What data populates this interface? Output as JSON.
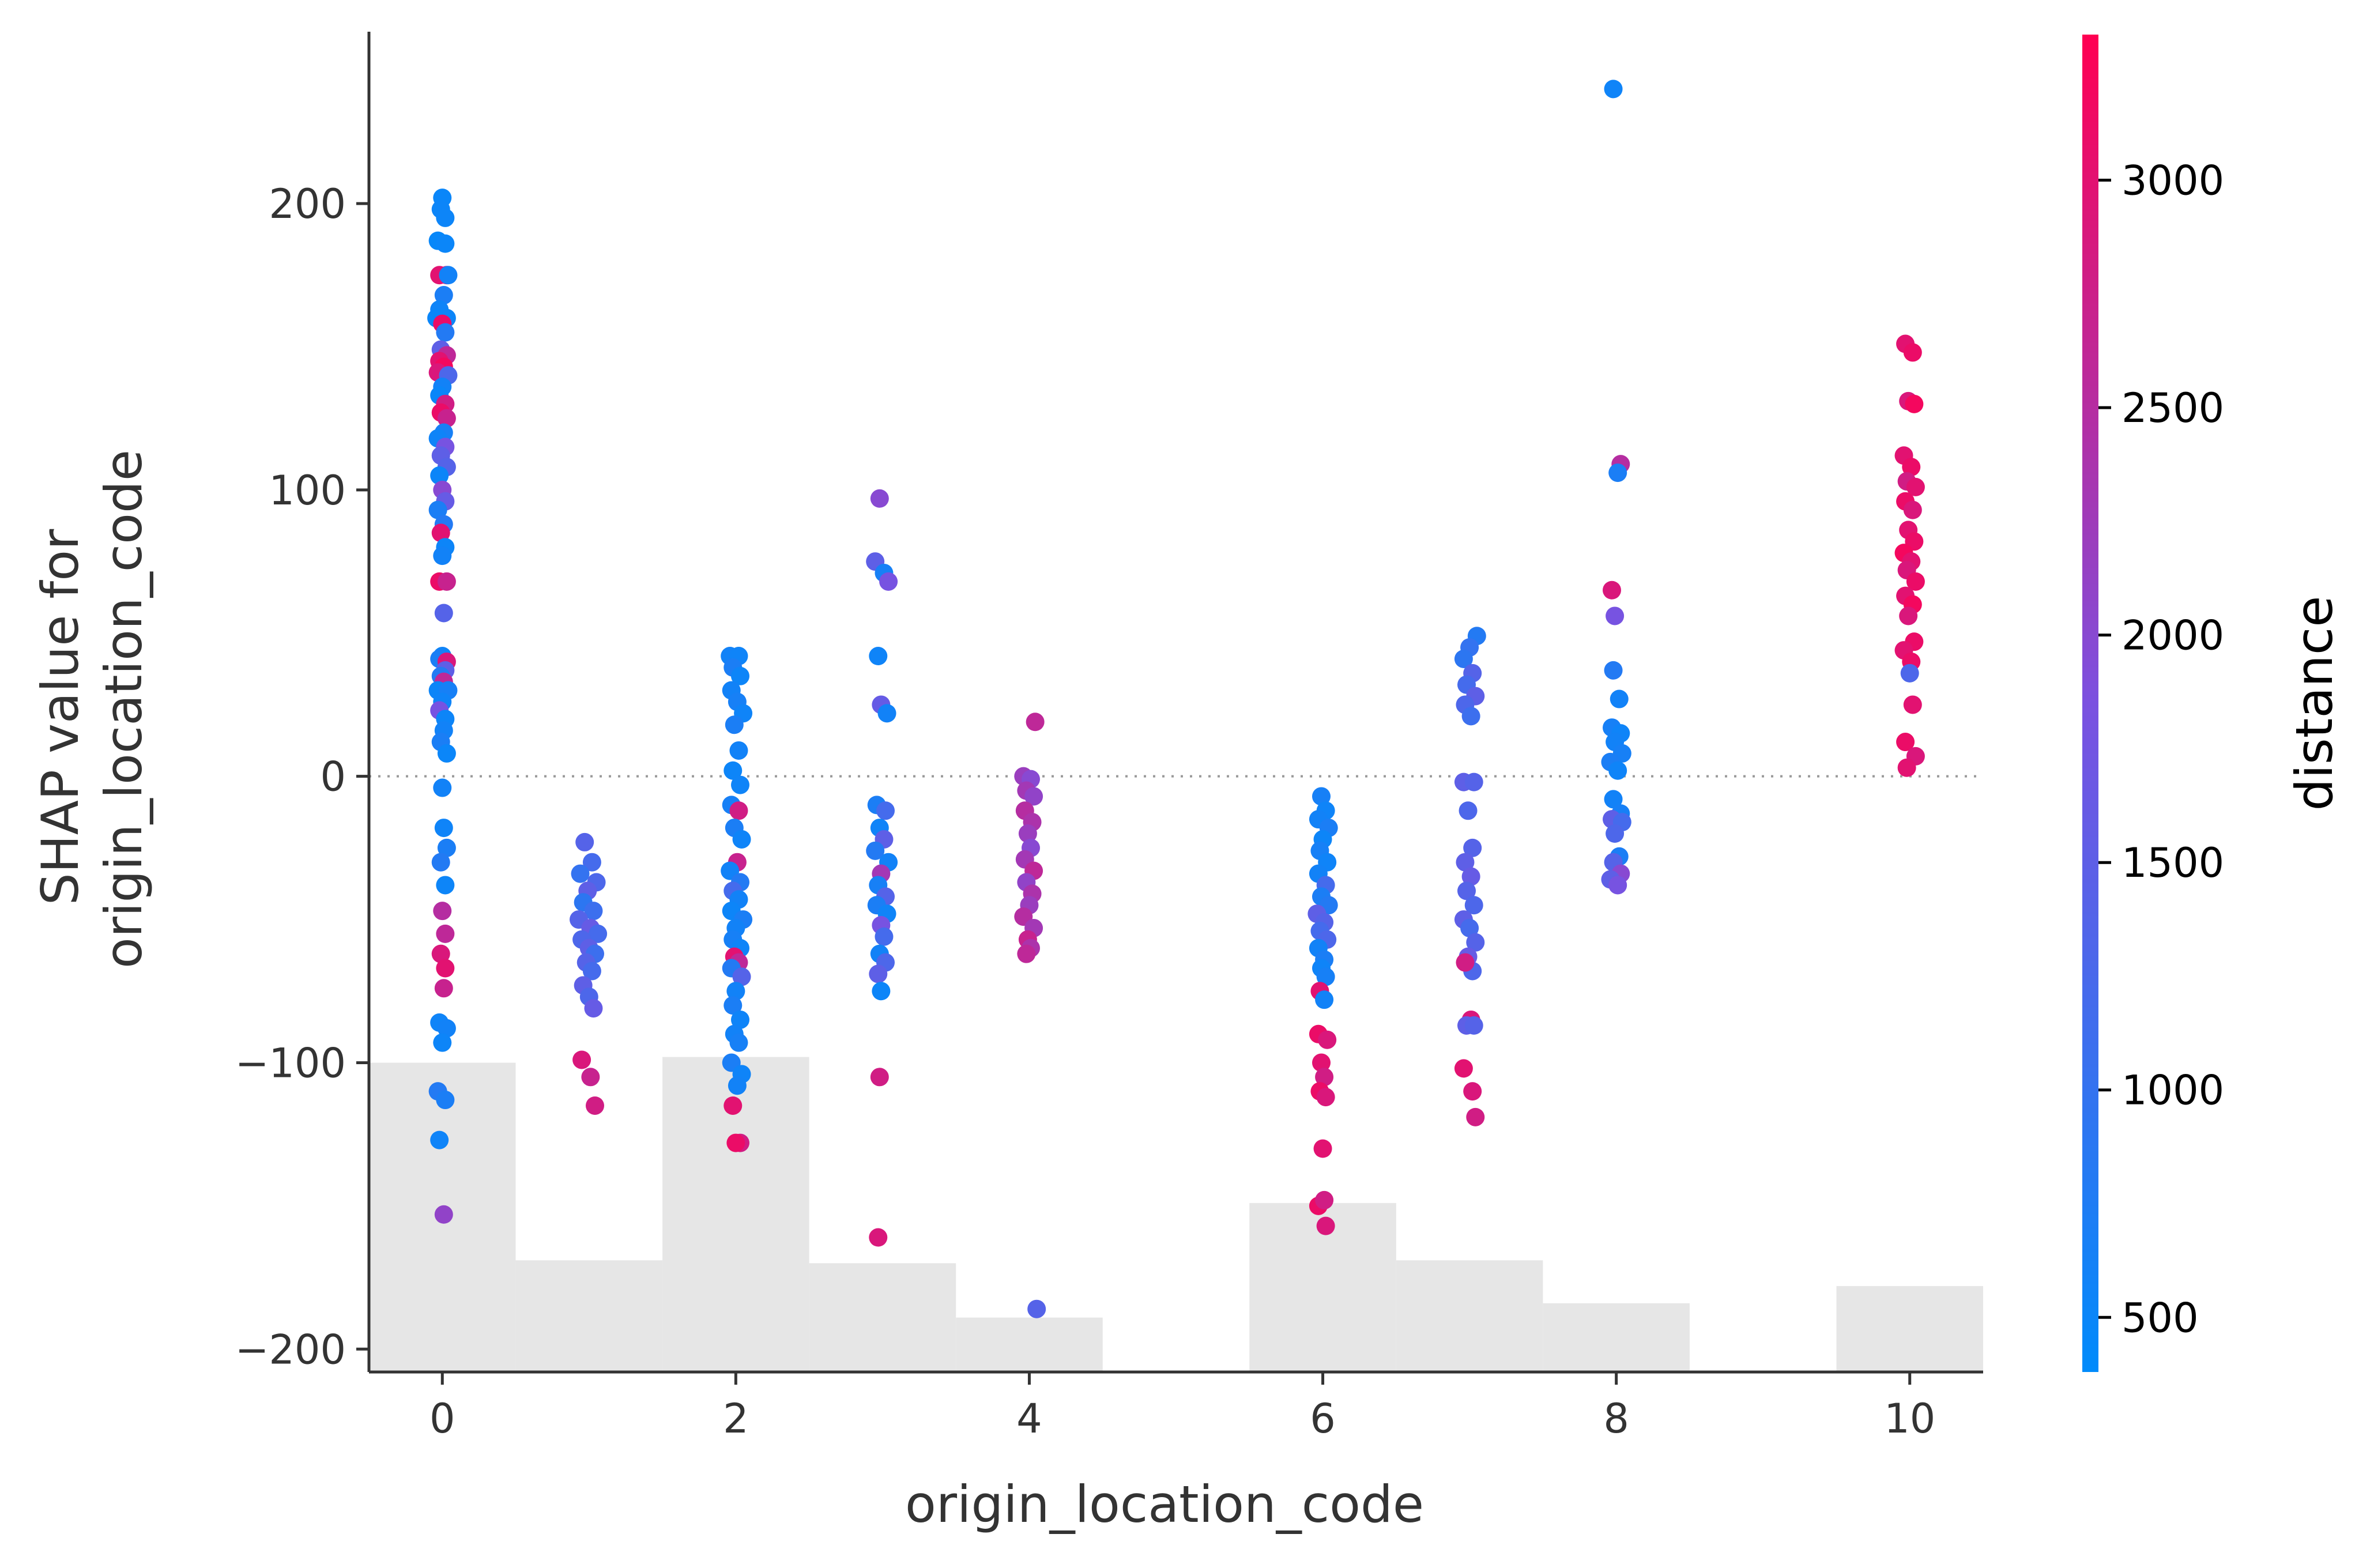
{
  "chart_data": {
    "type": "scatter",
    "xlabel": "origin_location_code",
    "ylabel_lines": [
      "SHAP value for",
      "origin_location_code"
    ],
    "xlim": [
      -0.5,
      10.5
    ],
    "ylim": [
      -208,
      260
    ],
    "x_ticks": [
      0,
      2,
      4,
      6,
      8,
      10
    ],
    "y_ticks": [
      -200,
      -100,
      0,
      100,
      200
    ],
    "y_tick_labels": [
      "−200",
      "−100",
      "0",
      "100",
      "200"
    ],
    "zero_line": 0,
    "colorbar": {
      "label": "distance",
      "range": [
        380,
        3320
      ],
      "ticks": [
        500,
        1000,
        1500,
        2000,
        2500,
        3000
      ],
      "low_color": "#008BFB",
      "mid_color": "#7B51E0",
      "high_color": "#FF0052"
    },
    "histogram": {
      "color": "#E6E6E6",
      "bins": [
        {
          "x0": -0.5,
          "x1": 0.5,
          "top": -100
        },
        {
          "x0": 0.5,
          "x1": 1.5,
          "top": -169
        },
        {
          "x0": 1.5,
          "x1": 2.5,
          "top": -98
        },
        {
          "x0": 2.5,
          "x1": 3.5,
          "top": -170
        },
        {
          "x0": 3.5,
          "x1": 4.5,
          "top": -189
        },
        {
          "x0": 4.5,
          "x1": 5.5,
          "top": -208
        },
        {
          "x0": 5.5,
          "x1": 6.5,
          "top": -149
        },
        {
          "x0": 6.5,
          "x1": 7.5,
          "top": -169
        },
        {
          "x0": 7.5,
          "x1": 8.5,
          "top": -184
        },
        {
          "x0": 8.5,
          "x1": 9.5,
          "top": -208
        },
        {
          "x0": 9.5,
          "x1": 10.5,
          "top": -178
        }
      ]
    },
    "points": [
      [
        0.0,
        202,
        500
      ],
      [
        -0.01,
        198,
        520
      ],
      [
        0.02,
        195,
        540
      ],
      [
        -0.03,
        187,
        480
      ],
      [
        0.02,
        186,
        510
      ],
      [
        0.03,
        175,
        2900
      ],
      [
        -0.02,
        175,
        3000
      ],
      [
        0.04,
        175,
        600
      ],
      [
        0.01,
        168,
        700
      ],
      [
        -0.02,
        163,
        550
      ],
      [
        0.03,
        160,
        520
      ],
      [
        -0.04,
        160,
        500
      ],
      [
        0.0,
        158,
        3100
      ],
      [
        0.02,
        155,
        800
      ],
      [
        -0.01,
        149,
        1500
      ],
      [
        0.03,
        147,
        2600
      ],
      [
        -0.02,
        145,
        3000
      ],
      [
        0.01,
        143,
        3200
      ],
      [
        -0.03,
        141,
        2900
      ],
      [
        0.04,
        140,
        1300
      ],
      [
        0.0,
        136,
        600
      ],
      [
        -0.02,
        133,
        500
      ],
      [
        0.02,
        130,
        2800
      ],
      [
        -0.01,
        127,
        3100
      ],
      [
        0.03,
        125,
        2700
      ],
      [
        0.01,
        120,
        650
      ],
      [
        -0.03,
        118,
        560
      ],
      [
        0.02,
        115,
        1800
      ],
      [
        -0.01,
        112,
        1500
      ],
      [
        0.03,
        108,
        1400
      ],
      [
        -0.02,
        105,
        520
      ],
      [
        0.0,
        100,
        2000
      ],
      [
        0.02,
        96,
        1600
      ],
      [
        -0.03,
        93,
        700
      ],
      [
        0.01,
        88,
        800
      ],
      [
        -0.01,
        85,
        3000
      ],
      [
        0.02,
        80,
        540
      ],
      [
        0.0,
        77,
        600
      ],
      [
        -0.02,
        68,
        3100
      ],
      [
        0.03,
        68,
        2700
      ],
      [
        0.01,
        57,
        1400
      ],
      [
        0.0,
        42,
        560
      ],
      [
        -0.02,
        41,
        700
      ],
      [
        0.03,
        40,
        2900
      ],
      [
        0.02,
        37,
        1500
      ],
      [
        -0.01,
        35,
        800
      ],
      [
        0.01,
        33,
        2600
      ],
      [
        -0.03,
        30,
        520
      ],
      [
        0.04,
        30,
        650
      ],
      [
        0.0,
        26,
        560
      ],
      [
        -0.02,
        23,
        1800
      ],
      [
        0.02,
        20,
        540
      ],
      [
        0.01,
        16,
        600
      ],
      [
        -0.01,
        12,
        700
      ],
      [
        0.03,
        8,
        510
      ],
      [
        0.0,
        -4,
        600
      ],
      [
        0.01,
        -18,
        560
      ],
      [
        0.03,
        -25,
        700
      ],
      [
        -0.01,
        -30,
        800
      ],
      [
        0.02,
        -38,
        540
      ],
      [
        0.0,
        -47,
        2500
      ],
      [
        0.02,
        -55,
        2600
      ],
      [
        -0.01,
        -62,
        2900
      ],
      [
        0.02,
        -67,
        3000
      ],
      [
        0.01,
        -74,
        2700
      ],
      [
        -0.02,
        -86,
        560
      ],
      [
        0.03,
        -88,
        600
      ],
      [
        0.0,
        -93,
        540
      ],
      [
        -0.03,
        -110,
        800
      ],
      [
        0.02,
        -113,
        700
      ],
      [
        -0.02,
        -127,
        560
      ],
      [
        0.01,
        -153,
        2100
      ],
      [
        0.97,
        -23,
        1400
      ],
      [
        1.02,
        -30,
        1200
      ],
      [
        0.94,
        -34,
        1000
      ],
      [
        1.05,
        -37,
        1300
      ],
      [
        0.99,
        -40,
        1500
      ],
      [
        0.96,
        -44,
        900
      ],
      [
        1.03,
        -47,
        1100
      ],
      [
        0.93,
        -50,
        1400
      ],
      [
        1.01,
        -53,
        1600
      ],
      [
        1.06,
        -55,
        1200
      ],
      [
        0.95,
        -57,
        1300
      ],
      [
        1.0,
        -60,
        1500
      ],
      [
        1.04,
        -62,
        1100
      ],
      [
        0.98,
        -65,
        1400
      ],
      [
        1.02,
        -68,
        1200
      ],
      [
        0.96,
        -73,
        1500
      ],
      [
        1.0,
        -77,
        1300
      ],
      [
        1.03,
        -81,
        1600
      ],
      [
        0.95,
        -99,
        2900
      ],
      [
        1.01,
        -105,
        2700
      ],
      [
        1.04,
        -115,
        2800
      ],
      [
        1.96,
        42,
        600
      ],
      [
        2.02,
        42,
        560
      ],
      [
        1.98,
        38,
        700
      ],
      [
        2.03,
        35,
        540
      ],
      [
        1.97,
        30,
        600
      ],
      [
        2.01,
        26,
        650
      ],
      [
        2.05,
        22,
        560
      ],
      [
        1.99,
        18,
        700
      ],
      [
        2.02,
        9,
        600
      ],
      [
        1.98,
        2,
        540
      ],
      [
        2.03,
        -3,
        560
      ],
      [
        1.97,
        -10,
        650
      ],
      [
        2.02,
        -12,
        2800
      ],
      [
        1.99,
        -18,
        700
      ],
      [
        2.04,
        -22,
        560
      ],
      [
        2.01,
        -30,
        2700
      ],
      [
        1.96,
        -33,
        600
      ],
      [
        2.03,
        -37,
        800
      ],
      [
        1.98,
        -40,
        1200
      ],
      [
        2.02,
        -43,
        600
      ],
      [
        1.97,
        -47,
        540
      ],
      [
        2.05,
        -50,
        700
      ],
      [
        2.0,
        -53,
        600
      ],
      [
        1.98,
        -57,
        650
      ],
      [
        2.03,
        -60,
        560
      ],
      [
        1.99,
        -63,
        3000
      ],
      [
        2.02,
        -65,
        2600
      ],
      [
        1.97,
        -67,
        800
      ],
      [
        2.04,
        -70,
        1400
      ],
      [
        2.0,
        -75,
        600
      ],
      [
        1.98,
        -80,
        700
      ],
      [
        2.03,
        -85,
        560
      ],
      [
        1.99,
        -90,
        600
      ],
      [
        2.02,
        -93,
        650
      ],
      [
        1.97,
        -100,
        700
      ],
      [
        2.04,
        -104,
        560
      ],
      [
        2.01,
        -108,
        600
      ],
      [
        1.98,
        -115,
        3000
      ],
      [
        2.03,
        -128,
        2800
      ],
      [
        2.0,
        -128,
        3100
      ],
      [
        2.98,
        97,
        2000
      ],
      [
        2.95,
        75,
        1500
      ],
      [
        3.01,
        71,
        650
      ],
      [
        3.04,
        68,
        1800
      ],
      [
        2.97,
        42,
        560
      ],
      [
        2.99,
        25,
        1600
      ],
      [
        3.03,
        22,
        600
      ],
      [
        2.96,
        -10,
        700
      ],
      [
        3.02,
        -12,
        1200
      ],
      [
        2.98,
        -18,
        560
      ],
      [
        3.01,
        -22,
        1500
      ],
      [
        2.95,
        -26,
        800
      ],
      [
        3.04,
        -30,
        600
      ],
      [
        2.99,
        -34,
        2300
      ],
      [
        2.97,
        -38,
        650
      ],
      [
        3.02,
        -42,
        1400
      ],
      [
        2.96,
        -45,
        700
      ],
      [
        3.03,
        -48,
        560
      ],
      [
        2.99,
        -52,
        1800
      ],
      [
        3.01,
        -56,
        1200
      ],
      [
        2.98,
        -62,
        600
      ],
      [
        3.02,
        -65,
        1300
      ],
      [
        2.97,
        -69,
        1500
      ],
      [
        2.99,
        -75,
        540
      ],
      [
        2.98,
        -105,
        2800
      ],
      [
        2.97,
        -161,
        2900
      ],
      [
        4.04,
        19,
        2600
      ],
      [
        3.96,
        0,
        2200
      ],
      [
        4.01,
        -1,
        2000
      ],
      [
        3.98,
        -5,
        2300
      ],
      [
        4.03,
        -7,
        2100
      ],
      [
        3.97,
        -12,
        2500
      ],
      [
        4.02,
        -16,
        2400
      ],
      [
        3.99,
        -20,
        2200
      ],
      [
        4.01,
        -25,
        2000
      ],
      [
        3.97,
        -29,
        2300
      ],
      [
        4.03,
        -33,
        2600
      ],
      [
        3.98,
        -37,
        2100
      ],
      [
        4.02,
        -41,
        2400
      ],
      [
        4.0,
        -45,
        2200
      ],
      [
        3.96,
        -49,
        2500
      ],
      [
        4.03,
        -53,
        2300
      ],
      [
        3.99,
        -57,
        2700
      ],
      [
        4.01,
        -60,
        2400
      ],
      [
        3.98,
        -62,
        2600
      ],
      [
        4.05,
        -186,
        1400
      ],
      [
        5.99,
        -7,
        650
      ],
      [
        6.02,
        -12,
        560
      ],
      [
        5.97,
        -15,
        600
      ],
      [
        6.04,
        -18,
        700
      ],
      [
        6.0,
        -22,
        540
      ],
      [
        5.98,
        -26,
        650
      ],
      [
        6.03,
        -30,
        560
      ],
      [
        5.97,
        -34,
        600
      ],
      [
        6.02,
        -38,
        1200
      ],
      [
        5.99,
        -42,
        700
      ],
      [
        6.04,
        -45,
        800
      ],
      [
        5.96,
        -48,
        1500
      ],
      [
        6.01,
        -51,
        1400
      ],
      [
        5.98,
        -54,
        1200
      ],
      [
        6.03,
        -57,
        1300
      ],
      [
        5.97,
        -60,
        600
      ],
      [
        6.01,
        -64,
        700
      ],
      [
        5.99,
        -67,
        560
      ],
      [
        6.02,
        -70,
        650
      ],
      [
        5.98,
        -75,
        3000
      ],
      [
        6.01,
        -78,
        600
      ],
      [
        5.97,
        -90,
        3100
      ],
      [
        6.03,
        -92,
        2900
      ],
      [
        5.99,
        -100,
        3000
      ],
      [
        6.01,
        -105,
        2800
      ],
      [
        5.98,
        -110,
        3100
      ],
      [
        6.02,
        -112,
        2900
      ],
      [
        6.0,
        -130,
        3000
      ],
      [
        5.97,
        -150,
        3100
      ],
      [
        6.01,
        -148,
        2800
      ],
      [
        6.02,
        -157,
        2900
      ],
      [
        7.05,
        49,
        800
      ],
      [
        7.0,
        45,
        1000
      ],
      [
        6.96,
        41,
        900
      ],
      [
        7.02,
        36,
        1400
      ],
      [
        6.98,
        32,
        1200
      ],
      [
        7.04,
        28,
        1500
      ],
      [
        6.97,
        25,
        1300
      ],
      [
        7.01,
        21,
        1100
      ],
      [
        6.96,
        -2,
        1500
      ],
      [
        7.03,
        -2,
        1400
      ],
      [
        6.99,
        -12,
        1300
      ],
      [
        7.02,
        -25,
        1400
      ],
      [
        6.97,
        -30,
        1500
      ],
      [
        7.01,
        -35,
        1600
      ],
      [
        6.98,
        -40,
        1400
      ],
      [
        7.03,
        -45,
        1300
      ],
      [
        6.96,
        -50,
        1500
      ],
      [
        7.0,
        -53,
        1200
      ],
      [
        7.04,
        -58,
        1400
      ],
      [
        6.99,
        -63,
        1600
      ],
      [
        7.02,
        -68,
        1300
      ],
      [
        6.97,
        -65,
        2800
      ],
      [
        7.01,
        -85,
        2900
      ],
      [
        6.98,
        -87,
        1500
      ],
      [
        7.03,
        -87,
        1400
      ],
      [
        6.96,
        -102,
        3000
      ],
      [
        7.02,
        -110,
        2900
      ],
      [
        7.04,
        -119,
        2800
      ],
      [
        7.98,
        240,
        560
      ],
      [
        8.03,
        109,
        2500
      ],
      [
        8.01,
        106,
        700
      ],
      [
        7.97,
        65,
        2900
      ],
      [
        7.99,
        56,
        1800
      ],
      [
        7.98,
        37,
        800
      ],
      [
        8.02,
        27,
        600
      ],
      [
        7.97,
        17,
        650
      ],
      [
        8.03,
        15,
        560
      ],
      [
        7.99,
        12,
        600
      ],
      [
        8.04,
        8,
        650
      ],
      [
        7.96,
        5,
        700
      ],
      [
        8.01,
        2,
        560
      ],
      [
        7.98,
        -8,
        600
      ],
      [
        8.03,
        -13,
        650
      ],
      [
        7.97,
        -15,
        1500
      ],
      [
        8.04,
        -16,
        1200
      ],
      [
        7.99,
        -20,
        1300
      ],
      [
        8.02,
        -28,
        700
      ],
      [
        7.98,
        -30,
        1400
      ],
      [
        8.03,
        -34,
        2000
      ],
      [
        7.96,
        -36,
        1500
      ],
      [
        8.01,
        -38,
        1800
      ],
      [
        9.97,
        151,
        3000
      ],
      [
        10.02,
        148,
        3100
      ],
      [
        9.99,
        131,
        2900
      ],
      [
        10.03,
        130,
        3200
      ],
      [
        9.96,
        112,
        3000
      ],
      [
        10.01,
        108,
        3100
      ],
      [
        9.98,
        103,
        2800
      ],
      [
        10.04,
        101,
        3000
      ],
      [
        9.97,
        96,
        3100
      ],
      [
        10.02,
        93,
        2900
      ],
      [
        9.99,
        86,
        3000
      ],
      [
        10.03,
        82,
        3100
      ],
      [
        9.96,
        78,
        3200
      ],
      [
        10.01,
        75,
        3000
      ],
      [
        9.98,
        72,
        2900
      ],
      [
        10.04,
        68,
        3100
      ],
      [
        9.97,
        63,
        3000
      ],
      [
        10.02,
        60,
        3200
      ],
      [
        9.99,
        56,
        2900
      ],
      [
        10.03,
        47,
        3100
      ],
      [
        9.96,
        44,
        3000
      ],
      [
        10.01,
        40,
        3100
      ],
      [
        10.0,
        36,
        1300
      ],
      [
        10.02,
        25,
        3000
      ],
      [
        9.97,
        12,
        3100
      ],
      [
        10.04,
        7,
        2900
      ],
      [
        9.98,
        3,
        3000
      ]
    ]
  }
}
